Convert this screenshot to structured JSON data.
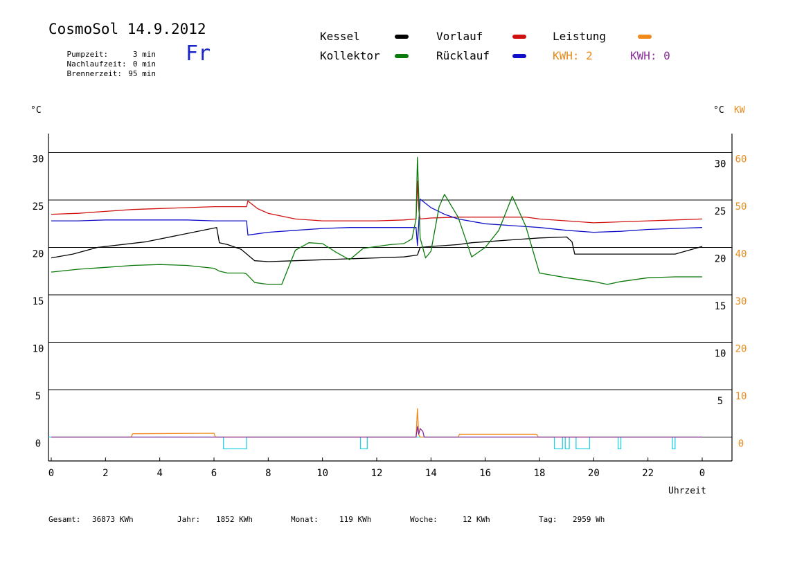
{
  "header": {
    "title": "CosmoSol 14.9.2012",
    "day": "Fr",
    "stats": [
      {
        "label": "Pumpzeit:",
        "value": "3 min"
      },
      {
        "label": "Nachlaufzeit:",
        "value": "0 min"
      },
      {
        "label": "Brennerzeit:",
        "value": "95 min"
      }
    ]
  },
  "legend": {
    "kessel": "Kessel",
    "kollektor": "Kollektor",
    "vorlauf": "Vorlauf",
    "ruecklauf": "Rücklauf",
    "leistung": "Leistung",
    "kwh1": "KWH: 2",
    "kwh2": "KWH: 0"
  },
  "footer": {
    "gesamt_label": "Gesamt:",
    "gesamt": "36873 KWh",
    "jahr_label": "Jahr:",
    "jahr": "1852 KWh",
    "monat_label": "Monat:",
    "monat": "119 KWh",
    "woche_label": "Woche:",
    "woche": "12 KWh",
    "tag_label": "Tag:",
    "tag": "2959 Wh"
  },
  "axes": {
    "left_unit": "°C",
    "right_unit": "°C",
    "kw_unit": "KW",
    "xlabel": "Uhrzeit"
  },
  "colors": {
    "kessel": "#000000",
    "kollektor": "#0a7a0a",
    "vorlauf": "#d01010",
    "ruecklauf": "#1010c8",
    "leistung": "#f08a1c",
    "kwh2": "#8a2a9a",
    "pump": "#22d0e0"
  },
  "chart_data": {
    "type": "line",
    "xlim": [
      0,
      24
    ],
    "ylim": [
      -2.5,
      32
    ],
    "x_ticks": [
      "0",
      "2",
      "4",
      "6",
      "8",
      "10",
      "12",
      "14",
      "16",
      "18",
      "20",
      "22",
      "0"
    ],
    "y_ticks_left": [
      0,
      5,
      10,
      15,
      20,
      25,
      30
    ],
    "y_ticks_kw": [
      0,
      10,
      20,
      30,
      40,
      50,
      60
    ],
    "grid": "horizontal",
    "series": [
      {
        "name": "Vorlauf",
        "color_key": "vorlauf",
        "x": [
          0,
          1,
          2,
          3,
          4,
          5,
          6,
          7.2,
          7.25,
          7.6,
          8,
          9,
          10,
          11,
          12,
          13,
          13.45,
          13.5,
          13.55,
          13.6,
          14,
          15,
          16,
          17,
          17.5,
          18,
          19,
          20,
          21,
          22,
          23,
          24
        ],
        "y": [
          23.5,
          23.6,
          23.8,
          24,
          24.1,
          24.2,
          24.3,
          24.3,
          24.9,
          24.1,
          23.6,
          23,
          22.8,
          22.8,
          22.8,
          22.9,
          23,
          27,
          24,
          23,
          23.1,
          23.2,
          23.2,
          23.2,
          23.2,
          23,
          22.8,
          22.6,
          22.7,
          22.8,
          22.9,
          23
        ]
      },
      {
        "name": "Rücklauf",
        "color_key": "ruecklauf",
        "x": [
          0,
          1,
          2,
          3,
          4,
          5,
          6,
          7.2,
          7.25,
          8,
          9,
          10,
          11,
          12,
          13,
          13.45,
          13.5,
          13.6,
          14,
          14.5,
          15,
          16,
          17,
          18,
          19,
          20,
          21,
          22,
          23,
          24
        ],
        "y": [
          22.8,
          22.8,
          22.9,
          22.9,
          22.9,
          22.9,
          22.8,
          22.8,
          21.3,
          21.6,
          21.8,
          22,
          22.1,
          22.1,
          22.1,
          22.1,
          20.2,
          25.1,
          24.2,
          23.5,
          23,
          22.5,
          22.3,
          22.1,
          21.8,
          21.6,
          21.7,
          21.9,
          22,
          22.1
        ]
      },
      {
        "name": "Kessel",
        "color_key": "kessel",
        "x": [
          0,
          0.8,
          1.7,
          3.5,
          6.1,
          6.2,
          6.5,
          7,
          7.5,
          8,
          9,
          10,
          11,
          12,
          13,
          13.5,
          13.6,
          14,
          15,
          15.5,
          16,
          17,
          18,
          19,
          19.2,
          19.3,
          19.5,
          20,
          21,
          22,
          23,
          24
        ],
        "y": [
          18.9,
          19.3,
          20,
          20.6,
          22.1,
          20.5,
          20.3,
          19.8,
          18.6,
          18.5,
          18.6,
          18.7,
          18.8,
          18.9,
          19,
          19.2,
          20,
          20.1,
          20.3,
          20.5,
          20.6,
          20.8,
          21,
          21.1,
          20.6,
          19.3,
          19.3,
          19.3,
          19.3,
          19.3,
          19.3,
          20.1
        ]
      },
      {
        "name": "Kollektor",
        "color_key": "kollektor",
        "x": [
          0,
          1,
          2,
          3,
          4,
          5,
          6,
          6.2,
          6.5,
          7.1,
          7.2,
          7.5,
          8,
          8.5,
          9,
          9.5,
          10,
          10.5,
          11,
          11.5,
          12,
          12.5,
          13,
          13.3,
          13.45,
          13.5,
          13.6,
          13.8,
          14,
          14.3,
          14.5,
          15,
          15.5,
          16,
          16.5,
          17,
          17.5,
          18,
          19,
          20,
          20.5,
          21,
          22,
          23,
          24
        ],
        "y": [
          17.4,
          17.7,
          17.9,
          18.1,
          18.2,
          18.1,
          17.8,
          17.5,
          17.3,
          17.3,
          17.2,
          16.3,
          16.1,
          16.1,
          19.7,
          20.5,
          20.4,
          19.5,
          18.7,
          19.9,
          20.1,
          20.3,
          20.4,
          20.9,
          23,
          29.5,
          21,
          18.9,
          19.6,
          24.3,
          25.6,
          23.2,
          19,
          20,
          21.8,
          25.4,
          22.2,
          17.3,
          16.8,
          16.4,
          16.1,
          16.4,
          16.8,
          16.9,
          16.9
        ]
      },
      {
        "name": "Leistung",
        "color_key": "leistung",
        "unit": "KW",
        "x": [
          0,
          2.95,
          3,
          6,
          6.05,
          13.45,
          13.5,
          13.55,
          13.6,
          15,
          15.05,
          17.9,
          17.95,
          24
        ],
        "y": [
          0,
          0,
          0.7,
          0.8,
          0,
          0,
          6,
          0.5,
          0,
          0,
          0.6,
          0.6,
          0,
          0
        ]
      },
      {
        "name": "KWH: 0",
        "color_key": "kwh2",
        "unit": "KW",
        "x": [
          0,
          13.45,
          13.5,
          13.55,
          13.6,
          13.7,
          13.75,
          24
        ],
        "y": [
          0,
          0,
          2.2,
          0.6,
          1.8,
          1.2,
          0,
          0
        ]
      }
    ],
    "pump_pulses": [
      [
        6.35,
        7.2
      ],
      [
        11.4,
        11.65
      ],
      [
        18.55,
        18.85
      ],
      [
        18.95,
        19.1
      ],
      [
        19.35,
        19.85
      ],
      [
        20.9,
        21
      ],
      [
        22.9,
        23
      ]
    ]
  }
}
